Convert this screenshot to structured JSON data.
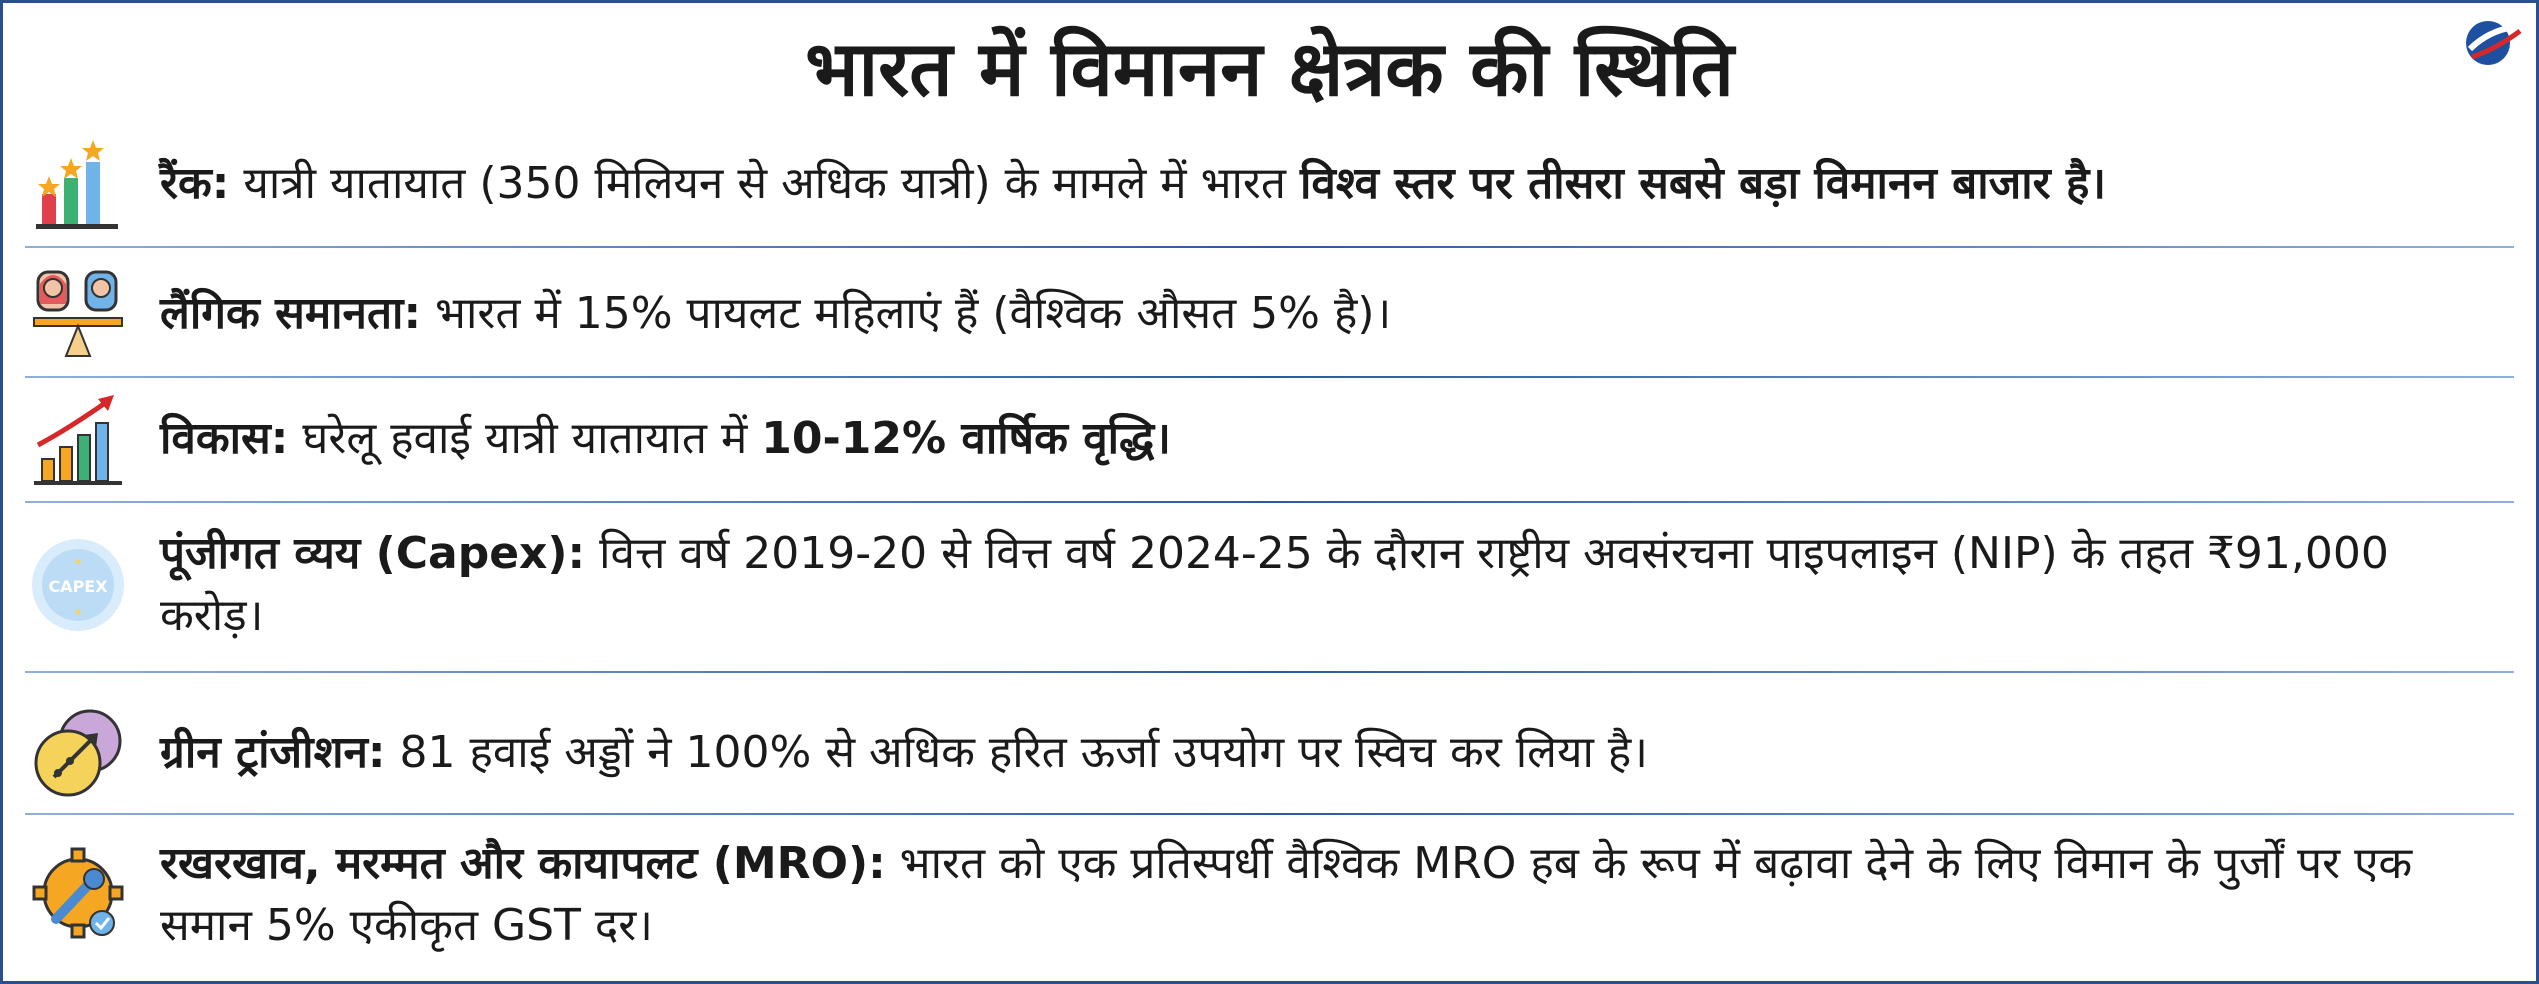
{
  "title": "भारत में विमानन क्षेत्रक की स्थिति",
  "colors": {
    "border": "#2a4f8f",
    "divider": "#2a5aa0",
    "text": "#1a1a1a"
  },
  "items": [
    {
      "icon": "ranking-bar-chart-icon",
      "label": "रैंक:",
      "text": " यात्री यातायात (350 मिलियन से अधिक यात्री) के मामले में भारत ",
      "bold_tail": "विश्व स्तर पर तीसरा सबसे बड़ा विमानन बाजार है।"
    },
    {
      "icon": "gender-balance-icon",
      "label": "लैंगिक समानता:",
      "text": " भारत में 15% पायलट महिलाएं हैं (वैश्विक औसत 5% है)।"
    },
    {
      "icon": "growth-chart-icon",
      "label": "विकास:",
      "text": " घरेलू हवाई यात्री यातायात में ",
      "bold_tail": "10-12% वार्षिक वृद्धि।"
    },
    {
      "icon": "capex-badge-icon",
      "icon_text": "CAPEX",
      "label": "पूंजीगत व्यय (Capex):",
      "text": " वित्त वर्ष 2019-20 से वित्त वर्ष 2024-25 के दौरान राष्ट्रीय अवसंरचना पाइपलाइन (NIP) के तहत ₹91,000 करोड़।"
    },
    {
      "icon": "green-transition-icon",
      "label": "ग्रीन ट्रांजीशन:",
      "text": " 81 हवाई अड्डों ने 100% से अधिक हरित ऊर्जा उपयोग पर स्विच कर लिया है।"
    },
    {
      "icon": "maintenance-gear-wrench-icon",
      "label": "रखरखाव, मरम्मत और कायापलट (MRO):",
      "text": " भारत को एक प्रतिस्पर्धी वैश्विक MRO हब के रूप में बढ़ावा देने के लिए विमान के पुर्जों पर एक समान 5% एकीकृत GST दर।"
    }
  ]
}
